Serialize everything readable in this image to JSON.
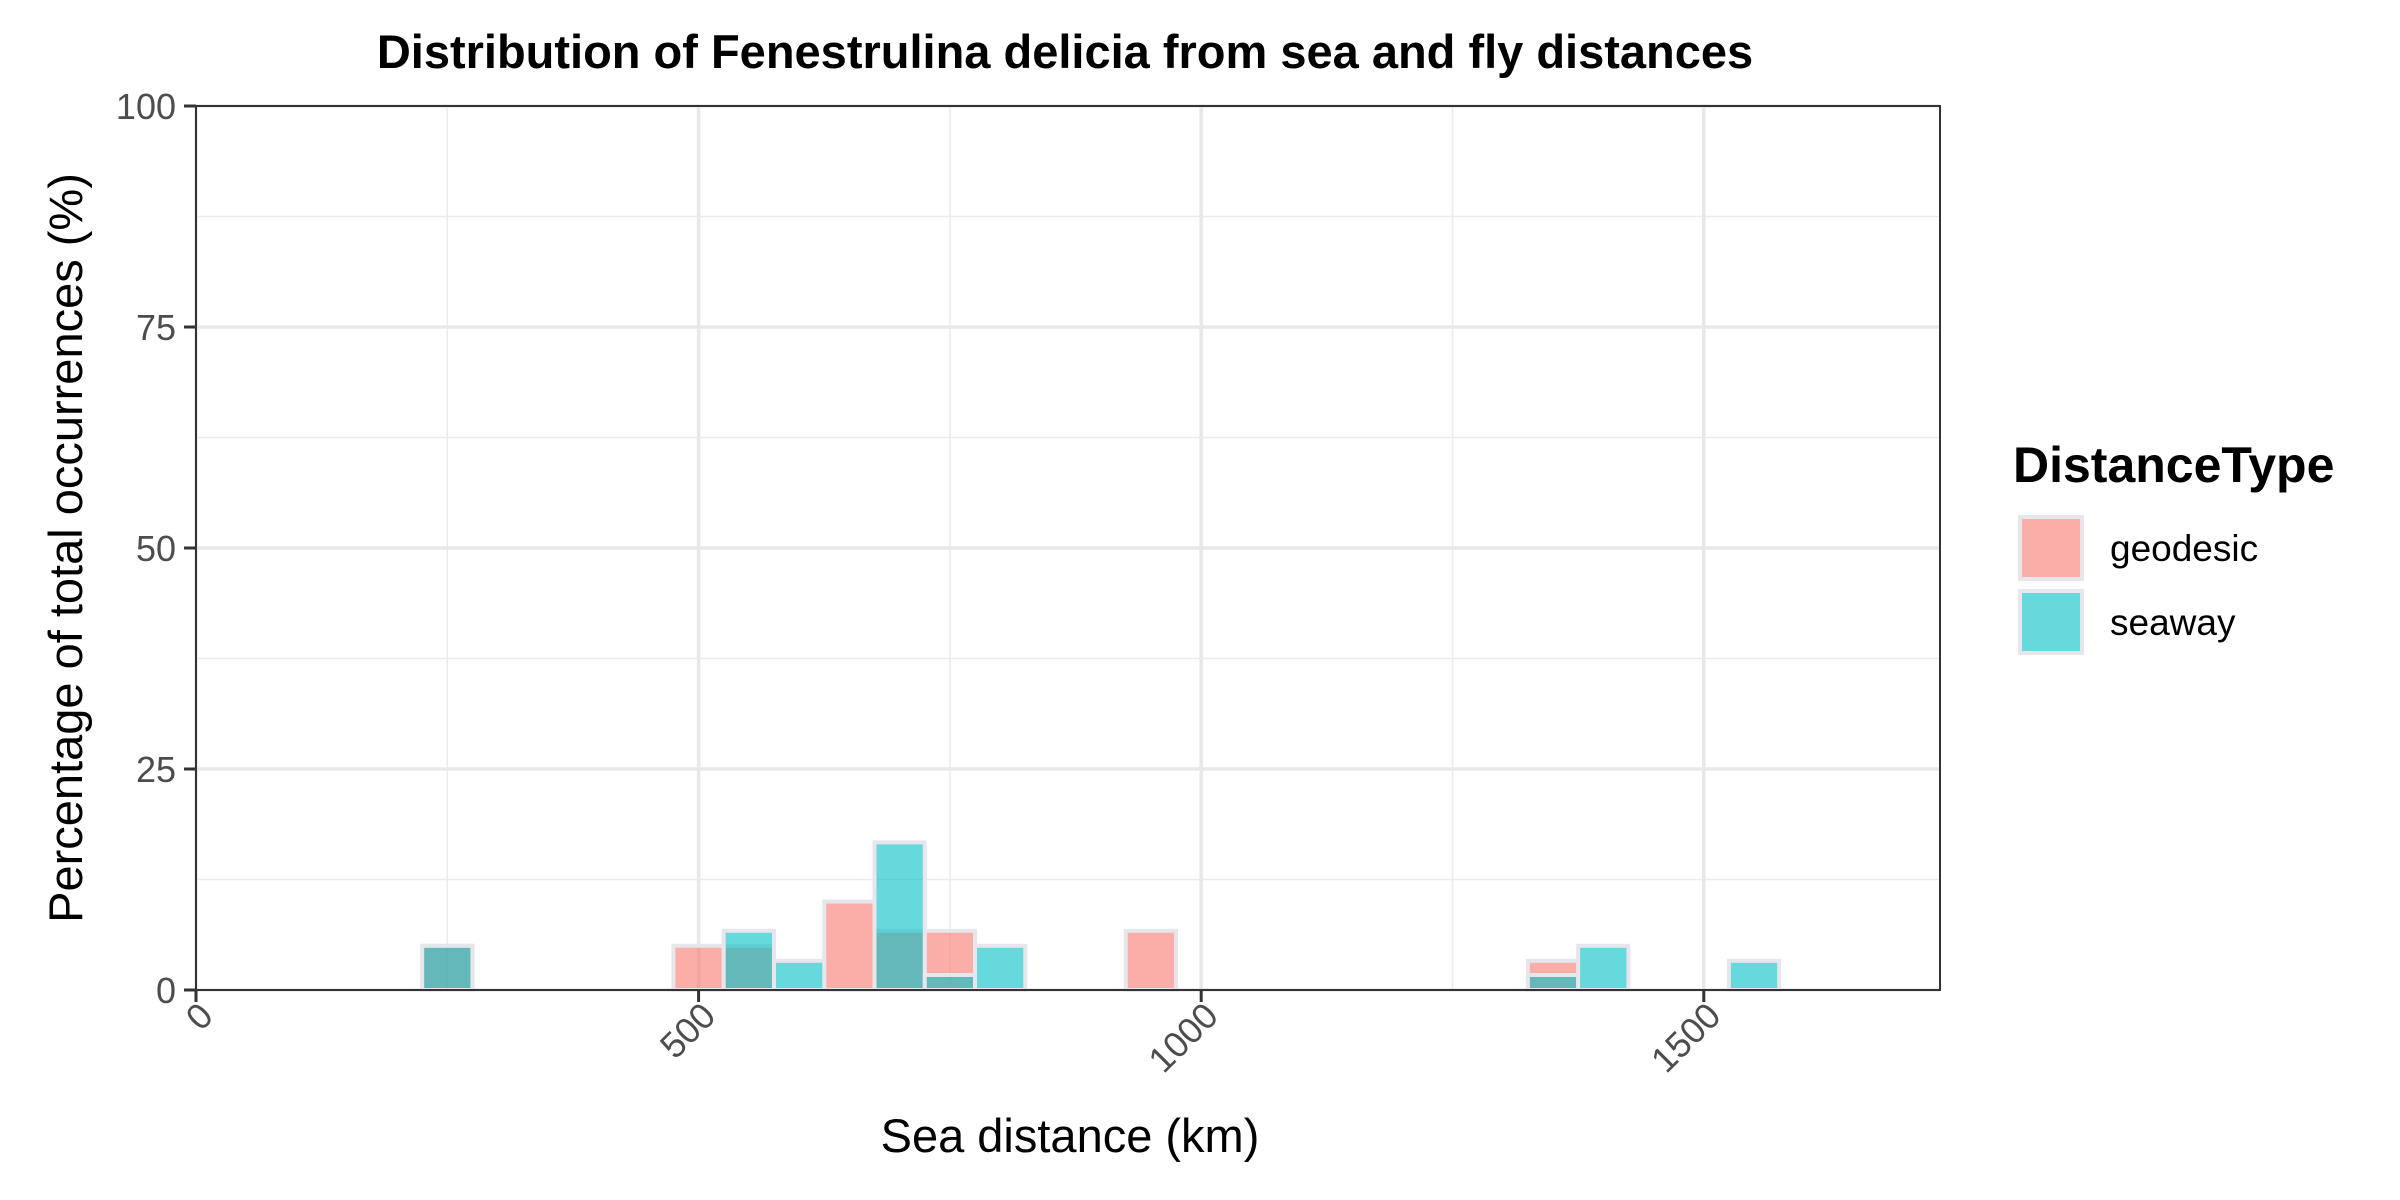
{
  "chart_data": {
    "type": "bar",
    "title": "Distribution of Fenestrulina delicia from sea and fly distances",
    "xlabel": "Sea distance (km)",
    "ylabel": "Percentage of total occurrences (%)",
    "xlim": [
      0,
      1735
    ],
    "ylim": [
      0,
      100
    ],
    "x_ticks": [
      0,
      500,
      1000,
      1500
    ],
    "y_ticks": [
      0,
      25,
      50,
      75,
      100
    ],
    "bin_width": 50,
    "grid": true,
    "legend": {
      "title": "DistanceType",
      "position": "right"
    },
    "series": [
      {
        "name": "geodesic",
        "color": "#F8766D",
        "bins": [
          {
            "x": 250,
            "y": 5.0
          },
          {
            "x": 500,
            "y": 5.0
          },
          {
            "x": 550,
            "y": 5.0
          },
          {
            "x": 650,
            "y": 10.0
          },
          {
            "x": 700,
            "y": 6.7
          },
          {
            "x": 750,
            "y": 6.7
          },
          {
            "x": 950,
            "y": 6.7
          },
          {
            "x": 1350,
            "y": 3.3
          }
        ]
      },
      {
        "name": "seaway",
        "color": "#00BFC4",
        "bins": [
          {
            "x": 250,
            "y": 5.0
          },
          {
            "x": 550,
            "y": 6.7
          },
          {
            "x": 600,
            "y": 3.3
          },
          {
            "x": 700,
            "y": 16.7
          },
          {
            "x": 750,
            "y": 1.7
          },
          {
            "x": 800,
            "y": 5.0
          },
          {
            "x": 1350,
            "y": 1.7
          },
          {
            "x": 1400,
            "y": 5.0
          },
          {
            "x": 1550,
            "y": 3.3
          }
        ]
      }
    ]
  }
}
